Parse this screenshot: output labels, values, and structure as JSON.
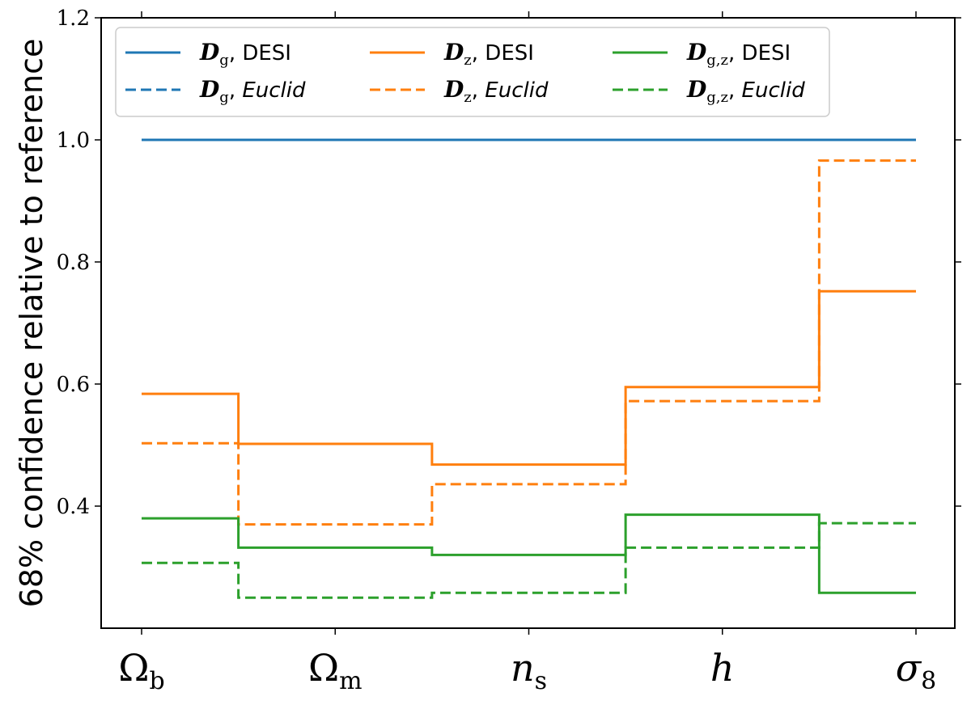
{
  "chart_data": {
    "type": "line",
    "step_style": "mid",
    "ylabel": "68% confidence relative to reference",
    "xlabel": "",
    "categories": [
      {
        "symbol": "Ω",
        "sub": "b",
        "italic": false
      },
      {
        "symbol": "Ω",
        "sub": "m",
        "italic": false
      },
      {
        "symbol": "n",
        "sub": "s",
        "italic": true
      },
      {
        "symbol": "h",
        "sub": "",
        "italic": true
      },
      {
        "symbol": "σ",
        "sub": "8",
        "italic": true
      }
    ],
    "ylim": [
      0.2,
      1.2
    ],
    "yticks": [
      "0.4",
      "0.6",
      "0.8",
      "1.0",
      "1.2"
    ],
    "ytick_values": [
      0.4,
      0.6,
      0.8,
      1.0,
      1.2
    ],
    "legend_position": "top",
    "series": [
      {
        "name": "DESI",
        "symbol": "D",
        "sub": "g",
        "survey_italic": false,
        "color": "#1f77b4",
        "dash": false,
        "values": [
          1.0,
          1.0,
          1.0,
          1.0,
          1.0
        ]
      },
      {
        "name": "Euclid",
        "symbol": "D",
        "sub": "g",
        "survey_italic": true,
        "color": "#1f77b4",
        "dash": true,
        "values": [
          1.0,
          1.0,
          1.0,
          1.0,
          1.0
        ]
      },
      {
        "name": "DESI",
        "symbol": "D",
        "sub": "z",
        "survey_italic": false,
        "color": "#ff7f0e",
        "dash": false,
        "values": [
          0.584,
          0.502,
          0.468,
          0.595,
          0.752
        ]
      },
      {
        "name": "Euclid",
        "symbol": "D",
        "sub": "z",
        "survey_italic": true,
        "color": "#ff7f0e",
        "dash": true,
        "values": [
          0.503,
          0.37,
          0.436,
          0.572,
          0.966
        ]
      },
      {
        "name": "DESI",
        "symbol": "D",
        "sub": "g,z",
        "survey_italic": false,
        "color": "#2ca02c",
        "dash": false,
        "values": [
          0.38,
          0.332,
          0.32,
          0.386,
          0.258
        ]
      },
      {
        "name": "Euclid",
        "symbol": "D",
        "sub": "g,z",
        "survey_italic": true,
        "color": "#2ca02c",
        "dash": true,
        "values": [
          0.307,
          0.25,
          0.258,
          0.332,
          0.372
        ]
      }
    ]
  }
}
